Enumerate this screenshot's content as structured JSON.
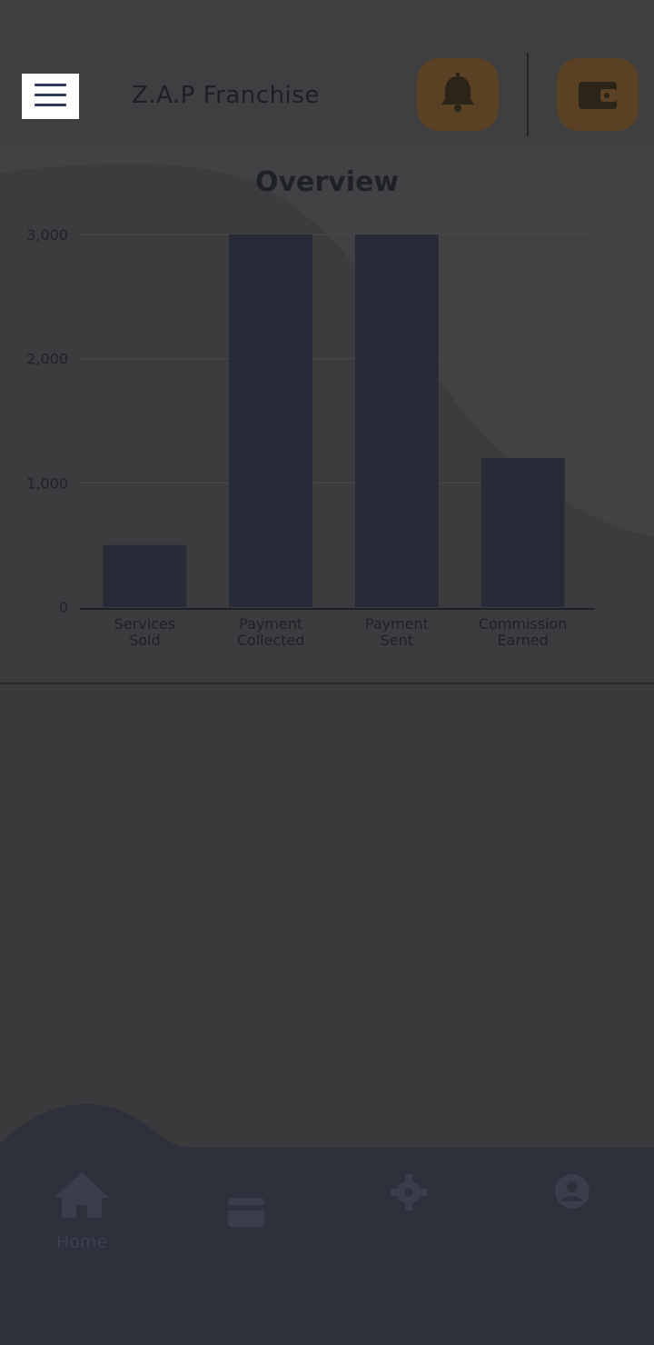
{
  "header": {
    "title": "Z.A.P Franchise",
    "menu_icon": "hamburger-icon",
    "notification_icon": "bell-icon",
    "wallet_icon": "wallet-icon",
    "accent_color": "#5a4124"
  },
  "chart_data": {
    "type": "bar",
    "title": "Overview",
    "categories": [
      "Services Sold",
      "Payment Collected",
      "Payment Sent",
      "Commission Earned"
    ],
    "category_lines": [
      [
        "Services",
        "Sold"
      ],
      [
        "Payment",
        "Collected"
      ],
      [
        "Payment",
        "Sent"
      ],
      [
        "Commission",
        "Earned"
      ]
    ],
    "values": [
      500,
      3000,
      3000,
      1200
    ],
    "yticks": [
      "3,000",
      "2,000",
      "1,000",
      "0"
    ],
    "ytick_values": [
      3000,
      2000,
      1000,
      0
    ],
    "ylim": [
      0,
      3000
    ],
    "bar_color": "#272b38",
    "grid": true
  },
  "bottom_nav": {
    "items": [
      {
        "label": "Home",
        "icon": "home-icon"
      },
      {
        "label": "",
        "icon": "card-icon"
      },
      {
        "label": "",
        "icon": "gear-icon"
      },
      {
        "label": "",
        "icon": "profile-icon"
      }
    ]
  }
}
